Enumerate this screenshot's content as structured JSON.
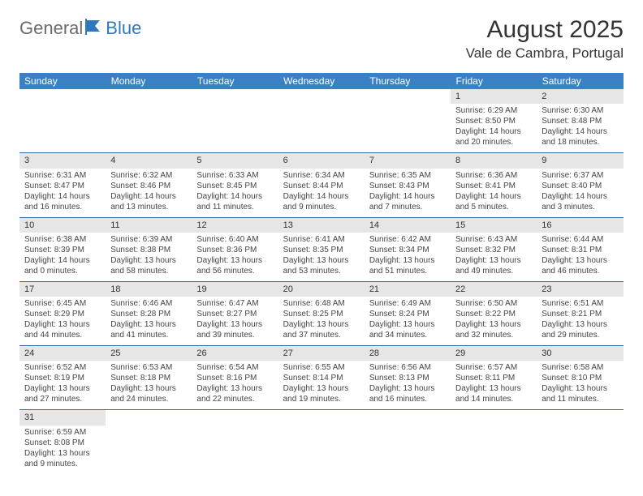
{
  "colors": {
    "header_bg": "#3a81c4",
    "header_text": "#ffffff",
    "daynum_bg": "#e6e6e6",
    "row_divider": "#2f6aa8",
    "logo_gray": "#6b6b6b",
    "logo_blue": "#2f78bf",
    "text": "#333333"
  },
  "logo": {
    "part1": "General",
    "part2": "Blue"
  },
  "title": "August 2025",
  "location": "Vale de Cambra, Portugal",
  "weekdays": [
    "Sunday",
    "Monday",
    "Tuesday",
    "Wednesday",
    "Thursday",
    "Friday",
    "Saturday"
  ],
  "weeks": [
    [
      null,
      null,
      null,
      null,
      null,
      {
        "n": "1",
        "sr": "Sunrise: 6:29 AM",
        "ss": "Sunset: 8:50 PM",
        "d1": "Daylight: 14 hours",
        "d2": "and 20 minutes."
      },
      {
        "n": "2",
        "sr": "Sunrise: 6:30 AM",
        "ss": "Sunset: 8:48 PM",
        "d1": "Daylight: 14 hours",
        "d2": "and 18 minutes."
      }
    ],
    [
      {
        "n": "3",
        "sr": "Sunrise: 6:31 AM",
        "ss": "Sunset: 8:47 PM",
        "d1": "Daylight: 14 hours",
        "d2": "and 16 minutes."
      },
      {
        "n": "4",
        "sr": "Sunrise: 6:32 AM",
        "ss": "Sunset: 8:46 PM",
        "d1": "Daylight: 14 hours",
        "d2": "and 13 minutes."
      },
      {
        "n": "5",
        "sr": "Sunrise: 6:33 AM",
        "ss": "Sunset: 8:45 PM",
        "d1": "Daylight: 14 hours",
        "d2": "and 11 minutes."
      },
      {
        "n": "6",
        "sr": "Sunrise: 6:34 AM",
        "ss": "Sunset: 8:44 PM",
        "d1": "Daylight: 14 hours",
        "d2": "and 9 minutes."
      },
      {
        "n": "7",
        "sr": "Sunrise: 6:35 AM",
        "ss": "Sunset: 8:43 PM",
        "d1": "Daylight: 14 hours",
        "d2": "and 7 minutes."
      },
      {
        "n": "8",
        "sr": "Sunrise: 6:36 AM",
        "ss": "Sunset: 8:41 PM",
        "d1": "Daylight: 14 hours",
        "d2": "and 5 minutes."
      },
      {
        "n": "9",
        "sr": "Sunrise: 6:37 AM",
        "ss": "Sunset: 8:40 PM",
        "d1": "Daylight: 14 hours",
        "d2": "and 3 minutes."
      }
    ],
    [
      {
        "n": "10",
        "sr": "Sunrise: 6:38 AM",
        "ss": "Sunset: 8:39 PM",
        "d1": "Daylight: 14 hours",
        "d2": "and 0 minutes."
      },
      {
        "n": "11",
        "sr": "Sunrise: 6:39 AM",
        "ss": "Sunset: 8:38 PM",
        "d1": "Daylight: 13 hours",
        "d2": "and 58 minutes."
      },
      {
        "n": "12",
        "sr": "Sunrise: 6:40 AM",
        "ss": "Sunset: 8:36 PM",
        "d1": "Daylight: 13 hours",
        "d2": "and 56 minutes."
      },
      {
        "n": "13",
        "sr": "Sunrise: 6:41 AM",
        "ss": "Sunset: 8:35 PM",
        "d1": "Daylight: 13 hours",
        "d2": "and 53 minutes."
      },
      {
        "n": "14",
        "sr": "Sunrise: 6:42 AM",
        "ss": "Sunset: 8:34 PM",
        "d1": "Daylight: 13 hours",
        "d2": "and 51 minutes."
      },
      {
        "n": "15",
        "sr": "Sunrise: 6:43 AM",
        "ss": "Sunset: 8:32 PM",
        "d1": "Daylight: 13 hours",
        "d2": "and 49 minutes."
      },
      {
        "n": "16",
        "sr": "Sunrise: 6:44 AM",
        "ss": "Sunset: 8:31 PM",
        "d1": "Daylight: 13 hours",
        "d2": "and 46 minutes."
      }
    ],
    [
      {
        "n": "17",
        "sr": "Sunrise: 6:45 AM",
        "ss": "Sunset: 8:29 PM",
        "d1": "Daylight: 13 hours",
        "d2": "and 44 minutes."
      },
      {
        "n": "18",
        "sr": "Sunrise: 6:46 AM",
        "ss": "Sunset: 8:28 PM",
        "d1": "Daylight: 13 hours",
        "d2": "and 41 minutes."
      },
      {
        "n": "19",
        "sr": "Sunrise: 6:47 AM",
        "ss": "Sunset: 8:27 PM",
        "d1": "Daylight: 13 hours",
        "d2": "and 39 minutes."
      },
      {
        "n": "20",
        "sr": "Sunrise: 6:48 AM",
        "ss": "Sunset: 8:25 PM",
        "d1": "Daylight: 13 hours",
        "d2": "and 37 minutes."
      },
      {
        "n": "21",
        "sr": "Sunrise: 6:49 AM",
        "ss": "Sunset: 8:24 PM",
        "d1": "Daylight: 13 hours",
        "d2": "and 34 minutes."
      },
      {
        "n": "22",
        "sr": "Sunrise: 6:50 AM",
        "ss": "Sunset: 8:22 PM",
        "d1": "Daylight: 13 hours",
        "d2": "and 32 minutes."
      },
      {
        "n": "23",
        "sr": "Sunrise: 6:51 AM",
        "ss": "Sunset: 8:21 PM",
        "d1": "Daylight: 13 hours",
        "d2": "and 29 minutes."
      }
    ],
    [
      {
        "n": "24",
        "sr": "Sunrise: 6:52 AM",
        "ss": "Sunset: 8:19 PM",
        "d1": "Daylight: 13 hours",
        "d2": "and 27 minutes."
      },
      {
        "n": "25",
        "sr": "Sunrise: 6:53 AM",
        "ss": "Sunset: 8:18 PM",
        "d1": "Daylight: 13 hours",
        "d2": "and 24 minutes."
      },
      {
        "n": "26",
        "sr": "Sunrise: 6:54 AM",
        "ss": "Sunset: 8:16 PM",
        "d1": "Daylight: 13 hours",
        "d2": "and 22 minutes."
      },
      {
        "n": "27",
        "sr": "Sunrise: 6:55 AM",
        "ss": "Sunset: 8:14 PM",
        "d1": "Daylight: 13 hours",
        "d2": "and 19 minutes."
      },
      {
        "n": "28",
        "sr": "Sunrise: 6:56 AM",
        "ss": "Sunset: 8:13 PM",
        "d1": "Daylight: 13 hours",
        "d2": "and 16 minutes."
      },
      {
        "n": "29",
        "sr": "Sunrise: 6:57 AM",
        "ss": "Sunset: 8:11 PM",
        "d1": "Daylight: 13 hours",
        "d2": "and 14 minutes."
      },
      {
        "n": "30",
        "sr": "Sunrise: 6:58 AM",
        "ss": "Sunset: 8:10 PM",
        "d1": "Daylight: 13 hours",
        "d2": "and 11 minutes."
      }
    ],
    [
      {
        "n": "31",
        "sr": "Sunrise: 6:59 AM",
        "ss": "Sunset: 8:08 PM",
        "d1": "Daylight: 13 hours",
        "d2": "and 9 minutes."
      },
      null,
      null,
      null,
      null,
      null,
      null
    ]
  ]
}
